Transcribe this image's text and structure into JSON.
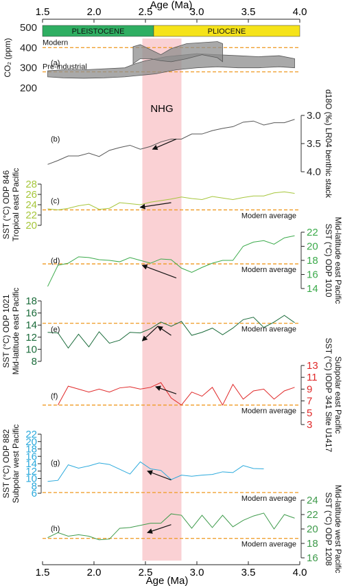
{
  "chart_data": {
    "type": "line",
    "xlabel": "Age (Ma)",
    "xlim": [
      1.5,
      4.0
    ],
    "xticks": [
      "1.5",
      "2.0",
      "2.5",
      "3.0",
      "3.5",
      "4.0"
    ],
    "nhg": {
      "label": "NHG",
      "from": 2.47,
      "to": 2.85,
      "color": "#f9c9cc"
    },
    "epochs": [
      {
        "name": "PLEISTOCENE",
        "from": 1.5,
        "to": 2.58,
        "color": "#2fae62"
      },
      {
        "name": "PLIOCENE",
        "from": 2.58,
        "to": 4.0,
        "color": "#f5e31a"
      }
    ],
    "modern_average_label": "Modern average",
    "reference_color": "#f0a030",
    "panels": [
      {
        "id": "a",
        "label": "(a)",
        "ylabel": "CO₂ (ppm)",
        "axis_side": "left",
        "ylim": [
          200,
          500
        ],
        "reversed": false,
        "yticks": [
          "200",
          "300",
          "400",
          "500"
        ],
        "color": "#555555",
        "references": [
          {
            "label": "Modern",
            "value": 400
          },
          {
            "label": "Pre-industrial",
            "value": 280
          }
        ],
        "bands": [
          {
            "x": [
              1.55,
              1.7,
              1.9,
              2.1,
              2.3,
              2.4,
              2.5,
              2.6,
              2.7,
              2.8,
              3.0,
              3.2,
              3.4,
              3.6,
              3.8,
              3.95
            ],
            "upper": [
              285,
              290,
              290,
              295,
              300,
              320,
              335,
              345,
              355,
              360,
              370,
              365,
              360,
              355,
              360,
              345
            ],
            "lower": [
              255,
              250,
              248,
              250,
              255,
              260,
              265,
              270,
              280,
              290,
              300,
              305,
              300,
              300,
              305,
              300
            ]
          },
          {
            "x": [
              2.38,
              2.45,
              2.55,
              2.65,
              2.75,
              2.9,
              3.05,
              3.2,
              3.25
            ],
            "upper": [
              405,
              415,
              390,
              365,
              395,
              420,
              425,
              430,
              420
            ],
            "lower": [
              320,
              345,
              345,
              335,
              330,
              345,
              365,
              350,
              330
            ]
          }
        ]
      },
      {
        "id": "b",
        "label": "(b)",
        "ylabel": "d18O (‰) LR04 benthic stack",
        "axis_side": "right",
        "ylim": [
          3.0,
          4.0
        ],
        "reversed": true,
        "yticks": [
          "3.0",
          "3.5",
          "4.0"
        ],
        "color": "#555555",
        "references": [],
        "series": [
          {
            "x": [
              1.55,
              1.65,
              1.75,
              1.85,
              1.95,
              2.05,
              2.15,
              2.25,
              2.35,
              2.45,
              2.55,
              2.65,
              2.75,
              2.85,
              2.95,
              3.05,
              3.15,
              3.25,
              3.35,
              3.45,
              3.55,
              3.65,
              3.75,
              3.85,
              3.95
            ],
            "y": [
              3.87,
              3.8,
              3.72,
              3.72,
              3.67,
              3.73,
              3.62,
              3.57,
              3.53,
              3.6,
              3.55,
              3.47,
              3.42,
              3.42,
              3.33,
              3.33,
              3.27,
              3.23,
              3.2,
              3.12,
              3.1,
              3.17,
              3.13,
              3.13,
              3.07
            ]
          }
        ],
        "arrow": {
          "x1": 2.8,
          "y1": 3.42,
          "x2": 2.57,
          "y2": 3.6
        }
      },
      {
        "id": "c",
        "label": "(c)",
        "ylabel": "SST (°C) ODP 846",
        "ylabel2": "Tropical east Pacific",
        "axis_side": "left",
        "ylim": [
          20,
          28
        ],
        "reversed": false,
        "yticks": [
          "20",
          "22",
          "24",
          "26",
          "28"
        ],
        "color": "#a6c63b",
        "references": [
          {
            "label": "Modern average",
            "value": 23
          }
        ],
        "series": [
          {
            "x": [
              1.55,
              1.65,
              1.75,
              1.85,
              1.95,
              2.05,
              2.15,
              2.25,
              2.35,
              2.45,
              2.55,
              2.65,
              2.75,
              2.85,
              2.95,
              3.05,
              3.15,
              3.25,
              3.35,
              3.45,
              3.55,
              3.65,
              3.75,
              3.85,
              3.95
            ],
            "y": [
              23.2,
              23.0,
              23.3,
              23.8,
              24.1,
              23.1,
              23.3,
              24.4,
              24.2,
              24.0,
              24.5,
              24.8,
              25.1,
              25.5,
              25.2,
              25.0,
              25.6,
              25.3,
              25.0,
              25.4,
              25.7,
              25.7,
              26.3,
              26.5,
              26.2
            ]
          }
        ],
        "arrow": {
          "x1": 2.75,
          "y1": 24.4,
          "x2": 2.45,
          "y2": 23.5
        }
      },
      {
        "id": "d",
        "label": "(d)",
        "ylabel": "SST (°C) ODP 1010",
        "ylabel2": "Mid-latitude east Pacific",
        "axis_side": "right",
        "ylim": [
          14,
          22
        ],
        "reversed": false,
        "yticks": [
          "14",
          "16",
          "18",
          "20",
          "22"
        ],
        "color": "#3aaa4a",
        "references": [
          {
            "label": "Modern average",
            "value": 17.5
          }
        ],
        "series": [
          {
            "x": [
              1.55,
              1.65,
              1.75,
              1.85,
              1.95,
              2.05,
              2.15,
              2.25,
              2.35,
              2.45,
              2.55,
              2.65,
              2.75,
              2.85,
              2.95,
              3.05,
              3.15,
              3.25,
              3.35,
              3.45,
              3.55,
              3.65,
              3.75,
              3.85,
              3.95
            ],
            "y": [
              14.3,
              17.3,
              17.6,
              18.5,
              18.4,
              18.1,
              18.0,
              17.8,
              18.4,
              18.0,
              17.6,
              18.2,
              18.1,
              16.9,
              16.3,
              17.0,
              17.6,
              18.0,
              18.0,
              20.0,
              20.6,
              20.8,
              20.3,
              21.2,
              21.5
            ]
          }
        ],
        "arrow": {
          "x1": 2.8,
          "y1": 15.5,
          "x2": 2.47,
          "y2": 17.3
        }
      },
      {
        "id": "e",
        "label": "(e)",
        "ylabel": "SST (°C) ODP 1021",
        "ylabel2": "Mid-latitude east Pacific",
        "axis_side": "left",
        "ylim": [
          8,
          18
        ],
        "reversed": false,
        "yticks": [
          "8",
          "10",
          "12",
          "14",
          "16",
          "18"
        ],
        "color": "#1a6b3a",
        "references": [
          {
            "label": "Modern average",
            "value": 14.3
          }
        ],
        "series": [
          {
            "x": [
              1.55,
              1.65,
              1.75,
              1.85,
              1.95,
              2.05,
              2.15,
              2.25,
              2.35,
              2.45,
              2.55,
              2.65,
              2.75,
              2.85,
              2.95,
              3.05,
              3.15,
              3.25,
              3.35,
              3.45,
              3.55,
              3.65,
              3.75,
              3.85,
              3.95
            ],
            "y": [
              12.8,
              12.7,
              10.2,
              12.5,
              10.4,
              12.9,
              11.0,
              11.5,
              12.8,
              12.7,
              13.4,
              14.5,
              13.8,
              14.6,
              12.3,
              12.8,
              13.5,
              12.4,
              13.5,
              14.9,
              15.3,
              13.6,
              14.5,
              15.6,
              14.4
            ]
          }
        ],
        "arrows": [
          {
            "x1": 2.75,
            "y1": 12.3,
            "x2": 2.62,
            "y2": 13.8
          },
          {
            "x1": 2.62,
            "y1": 13.8,
            "x2": 2.47,
            "y2": 11.4
          }
        ]
      },
      {
        "id": "f",
        "label": "(f)",
        "ylabel": "SST (°C) IODP 341 Site U1417",
        "ylabel2": "Subpolar east Pacific",
        "axis_side": "right",
        "ylim": [
          3,
          13
        ],
        "reversed": false,
        "yticks": [
          "3",
          "5",
          "7",
          "9",
          "11",
          "13"
        ],
        "color": "#e02828",
        "references": [
          {
            "label": "Modern average",
            "value": 6.3
          }
        ],
        "series": [
          {
            "x": [
              1.65,
              1.75,
              1.85,
              1.95,
              2.05,
              2.15,
              2.25,
              2.35,
              2.45,
              2.55,
              2.65,
              2.75,
              2.85,
              2.95,
              3.05,
              3.15,
              3.25,
              3.35,
              3.45,
              3.55,
              3.65,
              3.75,
              3.85,
              3.95
            ],
            "y": [
              6.3,
              9.5,
              9.0,
              8.5,
              9.0,
              8.5,
              9.2,
              9.4,
              9.0,
              9.3,
              10.1,
              7.5,
              6.3,
              8.5,
              7.8,
              9.3,
              6.3,
              9.8,
              7.3,
              8.7,
              9.0,
              7.3,
              8.7,
              9.3
            ]
          }
        ],
        "arrow": {
          "x1": 2.8,
          "y1": 8.2,
          "x2": 2.6,
          "y2": 9.4
        }
      },
      {
        "id": "g",
        "label": "(g)",
        "ylabel": "SST (°C) ODP 882",
        "ylabel2": "Subpolar  west Pacific",
        "axis_side": "left",
        "ylim": [
          6,
          22
        ],
        "reversed": false,
        "yticks": [
          "6",
          "8",
          "10",
          "12",
          "14",
          "16",
          "18",
          "20",
          "22"
        ],
        "color": "#2aa9dc",
        "references": [
          {
            "label": "Modern average",
            "value": 6.2
          }
        ],
        "series": [
          {
            "x": [
              1.55,
              1.65,
              1.75,
              1.85,
              1.95,
              2.05,
              2.15,
              2.25,
              2.35,
              2.45,
              2.55,
              2.65,
              2.75,
              2.85,
              2.95,
              3.05,
              3.15,
              3.25,
              3.35,
              3.45,
              3.55,
              3.65
            ],
            "y": [
              9.2,
              9.5,
              13.7,
              12.8,
              13.4,
              14.2,
              13.8,
              12.5,
              11.2,
              14.5,
              12.6,
              12.2,
              9.7,
              10.9,
              10.6,
              10.9,
              11.1,
              11.8,
              11.6,
              13.5,
              12.7,
              12.6
            ]
          }
        ],
        "arrow": {
          "x1": 2.75,
          "y1": 9.6,
          "x2": 2.52,
          "y2": 12.0
        }
      },
      {
        "id": "h",
        "label": "(h)",
        "ylabel": "SST (°C) ODP 1208",
        "ylabel2": "Mid-latitude west Pacific",
        "axis_side": "right",
        "ylim": [
          16,
          24
        ],
        "reversed": false,
        "yticks": [
          "16",
          "18",
          "20",
          "22",
          "24"
        ],
        "color": "#3d9a4a",
        "references": [
          {
            "label": "Modern average",
            "value": 18.7
          }
        ],
        "series": [
          {
            "x": [
              1.55,
              1.65,
              1.75,
              1.85,
              1.95,
              2.05,
              2.15,
              2.25,
              2.35,
              2.45,
              2.55,
              2.65,
              2.75,
              2.85,
              2.95,
              3.05,
              3.15,
              3.25,
              3.35,
              3.45,
              3.55,
              3.65,
              3.75,
              3.85,
              3.95
            ],
            "y": [
              18.8,
              19.5,
              19.0,
              19.2,
              19.0,
              18.5,
              18.6,
              20.1,
              20.2,
              20.5,
              20.8,
              20.8,
              22.1,
              21.9,
              20.1,
              21.9,
              20.2,
              21.9,
              20.3,
              21.2,
              21.8,
              22.2,
              20.0,
              22.0,
              21.5
            ]
          }
        ],
        "arrow": {
          "x1": 2.75,
          "y1": 20.6,
          "x2": 2.52,
          "y2": 19.5
        }
      }
    ]
  }
}
